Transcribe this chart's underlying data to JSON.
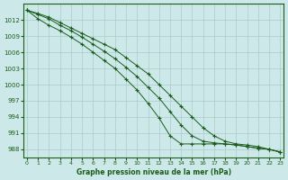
{
  "title": "Graphe pression niveau de la mer (hPa)",
  "bg_color": "#cce8e8",
  "grid_color": "#aacccc",
  "line_color": "#1a5c1a",
  "x": [
    0,
    1,
    2,
    3,
    4,
    5,
    6,
    7,
    8,
    9,
    10,
    11,
    12,
    13,
    14,
    15,
    16,
    17,
    18,
    19,
    20,
    21,
    22,
    23
  ],
  "line1": [
    1013.8,
    1013.2,
    1012.5,
    1011.5,
    1010.5,
    1009.5,
    1008.5,
    1007.5,
    1006.5,
    1005.0,
    1003.5,
    1002.0,
    1000.0,
    998.0,
    996.0,
    994.0,
    992.0,
    990.5,
    989.5,
    989.0,
    988.8,
    988.5,
    988.0,
    987.5
  ],
  "line2": [
    1013.8,
    1013.0,
    1012.2,
    1011.0,
    1010.0,
    1008.8,
    1007.5,
    1006.2,
    1004.8,
    1003.2,
    1001.5,
    999.5,
    997.5,
    995.0,
    992.5,
    990.5,
    989.5,
    989.2,
    989.0,
    988.8,
    988.5,
    988.2,
    988.0,
    987.5
  ],
  "line3": [
    1013.8,
    1012.2,
    1011.0,
    1010.0,
    1008.8,
    1007.5,
    1006.0,
    1004.5,
    1003.0,
    1001.0,
    999.0,
    996.5,
    993.8,
    990.5,
    989.0,
    989.0,
    989.0,
    989.0,
    989.0,
    988.8,
    988.5,
    988.2,
    988.0,
    987.5
  ],
  "ylim": [
    986.5,
    1015.0
  ],
  "yticks": [
    988,
    991,
    994,
    997,
    1000,
    1003,
    1006,
    1009,
    1012
  ],
  "xticks": [
    0,
    1,
    2,
    3,
    4,
    5,
    6,
    7,
    8,
    9,
    10,
    11,
    12,
    13,
    14,
    15,
    16,
    17,
    18,
    19,
    20,
    21,
    22,
    23
  ]
}
